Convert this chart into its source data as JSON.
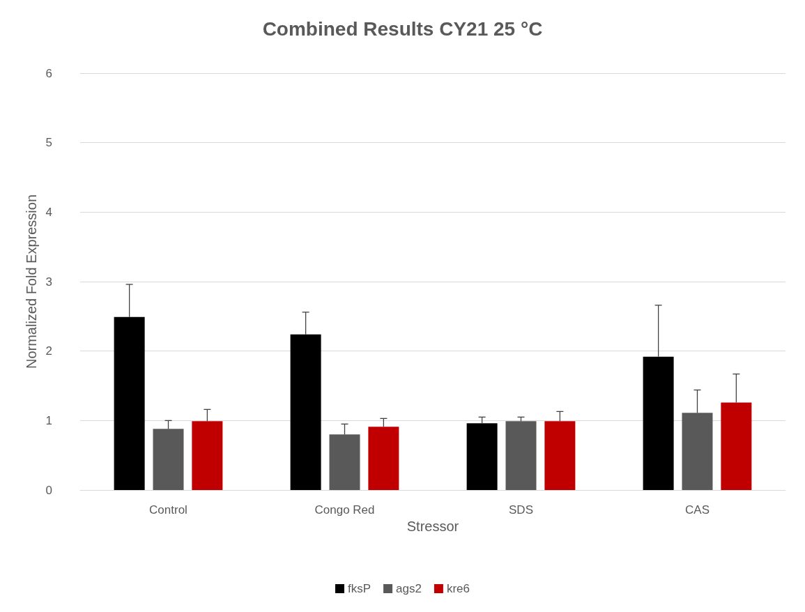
{
  "chart_data": {
    "type": "bar",
    "title": "Combined Results CY21 25 °C",
    "xlabel": "Stressor",
    "ylabel": "Normalized Fold Expression",
    "categories": [
      "Control",
      "Congo Red",
      "SDS",
      "CAS"
    ],
    "series": [
      {
        "name": "fksP",
        "color": "#000000",
        "values": [
          2.49,
          2.24,
          0.96,
          1.92
        ],
        "errors": [
          [
            2.49,
            2.96
          ],
          [
            2.24,
            2.56
          ],
          [
            0.96,
            1.05
          ],
          [
            1.92,
            2.66
          ]
        ]
      },
      {
        "name": "ags2",
        "color": "#595959",
        "values": [
          0.88,
          0.8,
          0.99,
          1.11
        ],
        "errors": [
          [
            0.88,
            1.0
          ],
          [
            0.8,
            0.95
          ],
          [
            0.99,
            1.05
          ],
          [
            1.11,
            1.44
          ]
        ]
      },
      {
        "name": "kre6",
        "color": "#c00000",
        "values": [
          0.99,
          0.91,
          0.99,
          1.26
        ],
        "errors": [
          [
            0.99,
            1.16
          ],
          [
            0.91,
            1.03
          ],
          [
            0.99,
            1.13
          ],
          [
            1.26,
            1.67
          ]
        ]
      }
    ],
    "ylim": [
      0,
      6
    ],
    "yticks": [
      0,
      1,
      2,
      3,
      4,
      5,
      6
    ],
    "grid": "y",
    "legend": "bottom"
  }
}
